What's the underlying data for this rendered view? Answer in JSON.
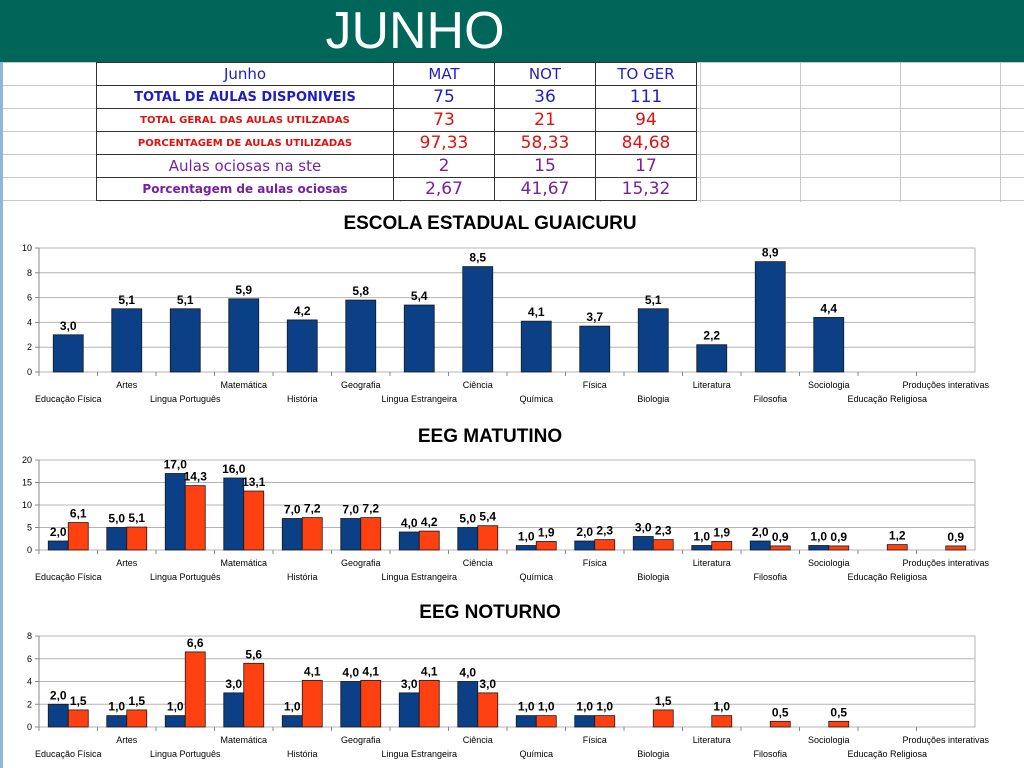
{
  "title": "JUNHO",
  "colors": {
    "header": "#00665a",
    "mat": "#0b3f86",
    "not": "#ff4010"
  },
  "summary": {
    "header": [
      "Junho",
      "MAT",
      "NOT",
      "TO GER"
    ],
    "rows": [
      [
        "TOTAL DE AULAS DISPONIVEIS",
        "75",
        "36",
        "111"
      ],
      [
        "TOTAL GERAL DAS AULAS UTILZADAS",
        "73",
        "21",
        "94"
      ],
      [
        "PORCENTAGEM DE AULAS UTILIZADAS",
        "97,33",
        "58,33",
        "84,68"
      ],
      [
        "Aulas ociosas na ste",
        "2",
        "15",
        "17"
      ],
      [
        "Porcentagem de aulas ociosas",
        "2,67",
        "41,67",
        "15,32"
      ]
    ]
  },
  "chart_data": [
    {
      "type": "bar",
      "title": "ESCOLA ESTADUAL GUAICURU",
      "categories": [
        "Educação Física",
        "Artes",
        "Lingua Português",
        "Matemática",
        "História",
        "Geografia",
        "Lingua Estrangeira",
        "Ciência",
        "Química",
        "Física",
        "Biologia",
        "Literatura",
        "Filosofia",
        "Sociologia",
        "Educação Religiosa",
        "Produções interativas"
      ],
      "series": [
        {
          "values": [
            3.0,
            5.1,
            5.1,
            5.9,
            4.2,
            5.8,
            5.4,
            8.5,
            4.1,
            3.7,
            5.1,
            2.2,
            8.9,
            4.4,
            null,
            null
          ],
          "labels": [
            "3,0",
            "5,1",
            "5,1",
            "5,9",
            "4,2",
            "5,8",
            "5,4",
            "8,5",
            "4,1",
            "3,7",
            "5,1",
            "2,2",
            "8,9",
            "4,4",
            "",
            ""
          ]
        }
      ],
      "ylim": [
        0,
        10
      ],
      "yticks": [
        0,
        2,
        4,
        6,
        8,
        10
      ],
      "grid": true
    },
    {
      "type": "bar",
      "title": "EEG MATUTINO",
      "categories": [
        "Educação Física",
        "Artes",
        "Lingua Português",
        "Matemática",
        "História",
        "Geografia",
        "Lingua Estrangeira",
        "Ciência",
        "Química",
        "Física",
        "Biologia",
        "Literatura",
        "Filosofia",
        "Sociologia",
        "Educação Religiosa",
        "Produções interativas"
      ],
      "series": [
        {
          "values": [
            2.0,
            5.0,
            17.0,
            16.0,
            7.0,
            7.0,
            4.0,
            5.0,
            1.0,
            2.0,
            3.0,
            1.0,
            2.0,
            1.0,
            null,
            null
          ],
          "labels": [
            "2,0",
            "5,0",
            "17,0",
            "16,0",
            "7,0",
            "7,0",
            "4,0",
            "5,0",
            "1,0",
            "2,0",
            "3,0",
            "1,0",
            "2,0",
            "1,0",
            "",
            ""
          ]
        },
        {
          "values": [
            6.1,
            5.1,
            14.3,
            13.1,
            7.2,
            7.2,
            4.2,
            5.4,
            1.9,
            2.3,
            2.3,
            1.9,
            0.9,
            0.9,
            1.2,
            0.9
          ],
          "labels": [
            "6,1",
            "5,1",
            "14,3",
            "13,1",
            "7,2",
            "7,2",
            "4,2",
            "5,4",
            "1,9",
            "2,3",
            "2,3",
            "1,9",
            "0,9",
            "0,9",
            "1,2",
            "0,9"
          ]
        }
      ],
      "ylim": [
        0,
        20
      ],
      "yticks": [
        0,
        5,
        10,
        15,
        20
      ],
      "grid": true
    },
    {
      "type": "bar",
      "title": "EEG NOTURNO",
      "categories": [
        "Educação Física",
        "Artes",
        "Lingua Português",
        "Matemática",
        "História",
        "Geografia",
        "Lingua Estrangeira",
        "Ciência",
        "Química",
        "Física",
        "Biologia",
        "Literatura",
        "Filosofia",
        "Sociologia",
        "Educação Religiosa",
        "Produções interativas"
      ],
      "series": [
        {
          "values": [
            2.0,
            1.0,
            1.0,
            3.0,
            1.0,
            4.0,
            3.0,
            4.0,
            1.0,
            1.0,
            null,
            null,
            null,
            null,
            null,
            null
          ],
          "labels": [
            "2,0",
            "1,0",
            "1,0",
            "3,0",
            "1,0",
            "4,0",
            "3,0",
            "4,0",
            "1,0",
            "1,0",
            "",
            "",
            "",
            "",
            "",
            ""
          ]
        },
        {
          "values": [
            1.5,
            1.5,
            6.6,
            5.6,
            4.1,
            4.1,
            4.1,
            3.0,
            1.0,
            1.0,
            1.5,
            1.0,
            0.5,
            0.5,
            null,
            null
          ],
          "labels": [
            "1,5",
            "1,5",
            "6,6",
            "5,6",
            "4,1",
            "4,1",
            "4,1",
            "3,0",
            "1,0",
            "1,0",
            "1,5",
            "1,0",
            "0,5",
            "0,5",
            "",
            ""
          ]
        }
      ],
      "ylim": [
        0,
        8
      ],
      "yticks": [
        0,
        2,
        4,
        6,
        8
      ],
      "grid": true
    }
  ]
}
